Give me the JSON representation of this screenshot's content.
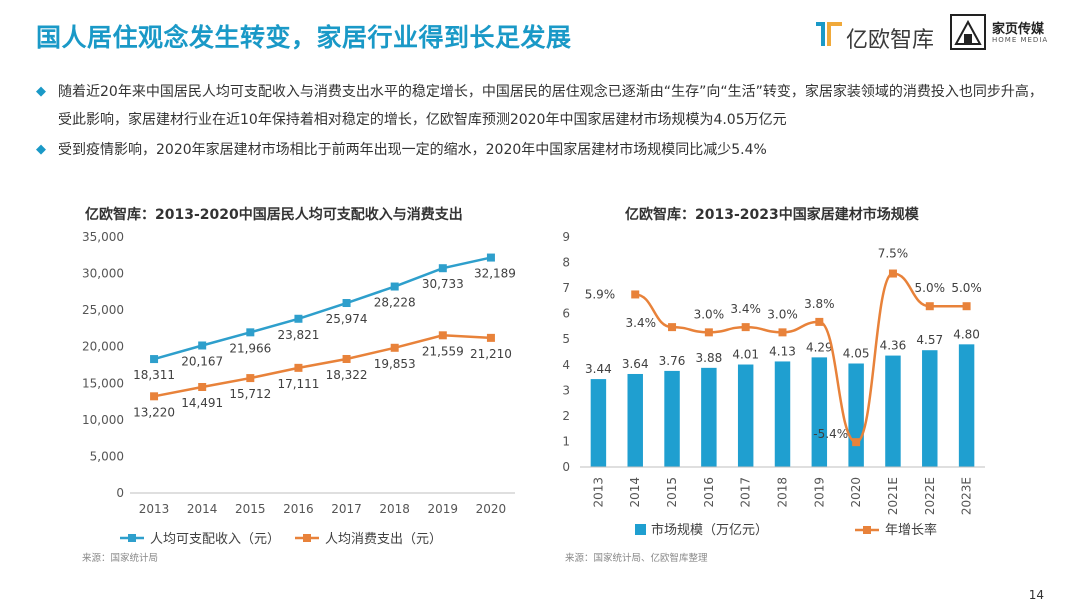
{
  "header": {
    "title": "国人居住观念发生转变，家居行业得到长足发展",
    "logo1_text": "亿欧智库",
    "logo2_text": "家页传媒",
    "logo2_sub": "HOME MEDIA"
  },
  "bullets": [
    "随着近20年来中国居民人均可支配收入与消费支出水平的稳定增长，中国居民的居住观念已逐渐由“生存”向“生活”转变，家居家装领域的消费投入也同步升高，受此影响，家居建材行业在近10年保持着相对稳定的增长，亿欧智库预测2020年中国家居建材市场规模为4.05万亿元",
    "受到疫情影响，2020年家居建材市场相比于前两年出现一定的缩水，2020年中国家居建材市场规模同比减少5.4%"
  ],
  "bullet_symbol": "◆",
  "chart_data": [
    {
      "type": "line",
      "title": "亿欧智库：2013-2020中国居民人均可支配收入与消费支出",
      "x": [
        "2013",
        "2014",
        "2015",
        "2016",
        "2017",
        "2018",
        "2019",
        "2020"
      ],
      "ylim": [
        0,
        35000
      ],
      "yticks": [
        "0",
        "5,000",
        "10,000",
        "15,000",
        "20,000",
        "25,000",
        "30,000",
        "35,000"
      ],
      "series": [
        {
          "name": "人均可支配收入（元）",
          "color": "#2e9fcc",
          "values": [
            18311,
            20167,
            21966,
            23821,
            25974,
            28228,
            30733,
            32189
          ],
          "labels": [
            "18,311",
            "20,167",
            "21,966",
            "23,821",
            "25,974",
            "28,228",
            "30,733",
            "32,189"
          ]
        },
        {
          "name": "人均消费支出（元）",
          "color": "#e8823a",
          "values": [
            13220,
            14491,
            15712,
            17111,
            18322,
            19853,
            21559,
            21210
          ],
          "labels": [
            "13,220",
            "14,491",
            "15,712",
            "17,111",
            "18,322",
            "19,853",
            "21,559",
            "21,210"
          ]
        }
      ],
      "source": "来源：国家统计局",
      "grid": false,
      "legend_position": "bottom"
    },
    {
      "type": "bar",
      "title": "亿欧智库：2013-2023中国家居建材市场规模",
      "categories": [
        "2013",
        "2014",
        "2015",
        "2016",
        "2017",
        "2018",
        "2019",
        "2020",
        "2021E",
        "2022E",
        "2023E"
      ],
      "ylim": [
        0,
        9
      ],
      "yticks": [
        "0",
        "1",
        "2",
        "3",
        "4",
        "5",
        "6",
        "7",
        "8",
        "9"
      ],
      "series": [
        {
          "name": "市场规模（万亿元）",
          "type": "bar",
          "color": "#1f9fd0",
          "values": [
            3.44,
            3.64,
            3.76,
            3.88,
            4.01,
            4.13,
            4.29,
            4.05,
            4.36,
            4.57,
            4.8
          ],
          "labels": [
            "3.44",
            "3.64",
            "3.76",
            "3.88",
            "4.01",
            "4.13",
            "4.29",
            "4.05",
            "4.36",
            "4.57",
            "4.80"
          ]
        },
        {
          "name": "年增长率",
          "type": "line",
          "color": "#e8823a",
          "values": [
            null,
            5.9,
            3.4,
            3.0,
            3.4,
            3.0,
            3.8,
            -5.4,
            7.5,
            5.0,
            5.0
          ],
          "labels": [
            "",
            "5.9%",
            "3.4%",
            "3.0%",
            "3.4%",
            "3.0%",
            "3.8%",
            "-5.4%",
            "7.5%",
            "5.0%",
            "5.0%"
          ]
        }
      ],
      "source": "来源：国家统计局、亿欧智库整理",
      "grid": false,
      "legend_position": "bottom"
    }
  ],
  "page_number": "14"
}
